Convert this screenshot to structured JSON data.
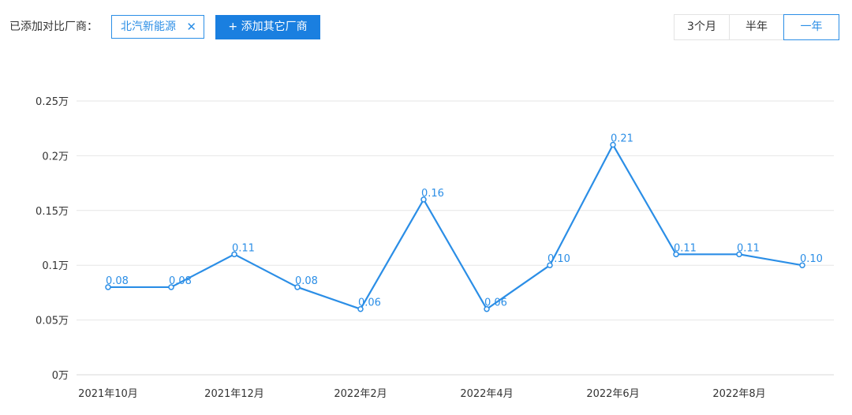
{
  "toolbar": {
    "added_label": "已添加对比厂商：",
    "brand_tag": "北汽新能源",
    "brand_tag_close": "✕",
    "add_button": "+ 添加其它厂商",
    "ranges": [
      "3个月",
      "半年",
      "一年"
    ],
    "active_range": "一年"
  },
  "colors": {
    "accent": "#2b8ee6",
    "button_bg": "#1a7fe0",
    "line": "#2b8ee6",
    "grid": "#e6e6e6"
  },
  "chart_data": {
    "type": "line",
    "title": "",
    "xlabel": "",
    "ylabel": "",
    "x": [
      "2021年10月",
      "2021年11月",
      "2021年12月",
      "2022年1月",
      "2022年2月",
      "2022年3月",
      "2022年4月",
      "2022年5月",
      "2022年6月",
      "2022年7月",
      "2022年8月",
      "2022年9月"
    ],
    "x_tick_labels": [
      "2021年10月",
      "",
      "2021年12月",
      "",
      "2022年2月",
      "",
      "2022年4月",
      "",
      "2022年6月",
      "",
      "2022年8月",
      ""
    ],
    "series": [
      {
        "values": [
          0.08,
          0.08,
          0.11,
          0.08,
          0.06,
          0.16,
          0.06,
          0.1,
          0.21,
          0.11,
          0.11,
          0.1
        ],
        "data_labels": [
          "0.08",
          "0.08",
          "0.11",
          "0.08",
          "0.06",
          "0.16",
          "0.06",
          "0.10",
          "0.21",
          "0.11",
          "0.11",
          "0.10"
        ]
      }
    ],
    "y_ticks": [
      0,
      0.05,
      0.1,
      0.15,
      0.2,
      0.25
    ],
    "y_tick_labels": [
      "0万",
      "0.05万",
      "0.1万",
      "0.15万",
      "0.2万",
      "0.25万"
    ],
    "ylim": [
      0,
      0.25
    ],
    "grid": true,
    "legend": "none"
  }
}
